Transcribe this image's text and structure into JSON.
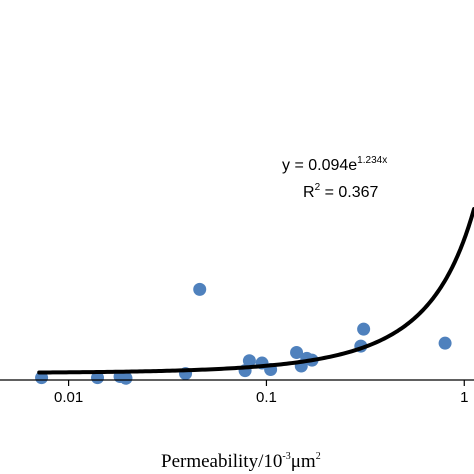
{
  "chart_data": {
    "type": "scatter",
    "xscale": "log",
    "xlim": [
      0.0045,
      1.12
    ],
    "ylim": [
      0,
      0.65
    ],
    "grid": false,
    "colors": {
      "points": "#4f81bd",
      "trend": "#000000",
      "axis": "#000000"
    },
    "xticks": [
      {
        "value": 0.01,
        "label": "0.01"
      },
      {
        "value": 0.1,
        "label": "0.1"
      },
      {
        "value": 1,
        "label": "1"
      }
    ],
    "xlabel": {
      "base": "Permeability/10",
      "sup": "-3",
      "unit": "μm",
      "unit_sup": "2"
    },
    "points": [
      {
        "x": 0.0073,
        "y": 0.004
      },
      {
        "x": 0.014,
        "y": 0.004
      },
      {
        "x": 0.0182,
        "y": 0.006
      },
      {
        "x": 0.0195,
        "y": 0.003
      },
      {
        "x": 0.039,
        "y": 0.011
      },
      {
        "x": 0.046,
        "y": 0.155
      },
      {
        "x": 0.078,
        "y": 0.016
      },
      {
        "x": 0.082,
        "y": 0.033
      },
      {
        "x": 0.095,
        "y": 0.029
      },
      {
        "x": 0.105,
        "y": 0.018
      },
      {
        "x": 0.142,
        "y": 0.047
      },
      {
        "x": 0.15,
        "y": 0.024
      },
      {
        "x": 0.16,
        "y": 0.037
      },
      {
        "x": 0.17,
        "y": 0.034
      },
      {
        "x": 0.3,
        "y": 0.058
      },
      {
        "x": 0.31,
        "y": 0.087
      },
      {
        "x": 0.8,
        "y": 0.063
      }
    ],
    "trendline": {
      "type": "exponential",
      "a": 0.094,
      "b": 1.234,
      "equation": {
        "prefix": "y = 0.094e",
        "exponent": "1.234x"
      },
      "r2": {
        "prefix": "R",
        "sup": "2",
        "suffix": " = 0.367"
      }
    }
  }
}
